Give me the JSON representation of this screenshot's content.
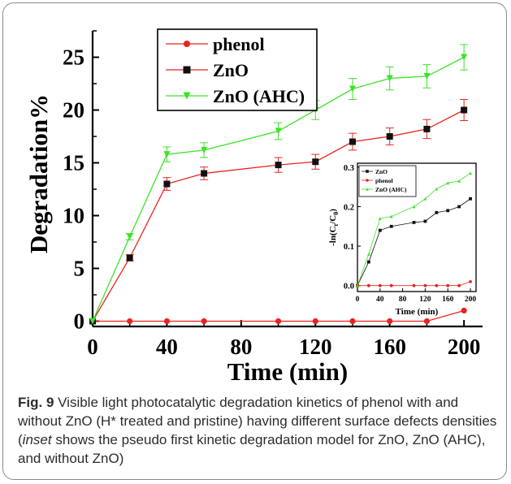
{
  "chart_data": [
    {
      "type": "line",
      "x": [
        0,
        20,
        40,
        60,
        100,
        120,
        140,
        160,
        180,
        200
      ],
      "series": [
        {
          "name": "phenol",
          "color": "#e8231f",
          "marker": "circle",
          "values": [
            0,
            0,
            0,
            0,
            0,
            0,
            0,
            0,
            0,
            1
          ]
        },
        {
          "name": "ZnO",
          "color": "#e8231f",
          "marker": "square",
          "values": [
            0,
            6,
            13,
            14,
            14.8,
            15.1,
            17,
            17.5,
            18.2,
            20
          ],
          "errors": [
            0,
            0.3,
            0.6,
            0.6,
            0.7,
            0.7,
            0.8,
            0.8,
            0.9,
            1.0
          ]
        },
        {
          "name": "ZnO (AHC)",
          "color": "#3de22a",
          "marker": "triangle-down",
          "values": [
            0,
            8,
            15.8,
            16.2,
            18,
            20,
            22,
            23,
            23.2,
            25
          ],
          "errors": [
            0,
            0.3,
            0.7,
            0.7,
            0.8,
            0.9,
            1.0,
            1.1,
            1.1,
            1.2
          ]
        }
      ],
      "xlabel": "Time (min)",
      "ylabel": "Degradation%",
      "xlim": [
        0,
        210
      ],
      "ylim": [
        -0.5,
        27.5
      ],
      "xticks": [
        0,
        40,
        80,
        120,
        160,
        200
      ],
      "yticks": [
        0,
        5,
        10,
        15,
        20,
        25
      ],
      "legend_position": "top-left"
    },
    {
      "type": "line",
      "x": [
        0,
        20,
        40,
        60,
        100,
        120,
        140,
        160,
        180,
        200
      ],
      "series": [
        {
          "name": "ZnO",
          "color": "#111111",
          "marker": "square",
          "values": [
            0,
            0.06,
            0.14,
            0.15,
            0.16,
            0.163,
            0.185,
            0.19,
            0.2,
            0.22
          ]
        },
        {
          "name": "phenol",
          "color": "#e8231f",
          "marker": "circle",
          "values": [
            0,
            0,
            0,
            0,
            0,
            0,
            0,
            0,
            0,
            0.01
          ]
        },
        {
          "name": "ZnO (AHC)",
          "color": "#3de22a",
          "marker": "triangle-up",
          "values": [
            0,
            0.08,
            0.17,
            0.175,
            0.2,
            0.22,
            0.245,
            0.26,
            0.265,
            0.285
          ]
        }
      ],
      "xlabel": "Time (min)",
      "ylabel": "-ln(C/C0)",
      "ylabel_main": "-ln(C",
      "ylabel_sub": "t",
      "ylabel_mid": "/C",
      "ylabel_sub2": "0",
      "ylabel_end": ")",
      "xlim": [
        0,
        210
      ],
      "ylim": [
        -0.015,
        0.31
      ],
      "xticks": [
        0,
        40,
        80,
        120,
        160,
        200
      ],
      "yticks": [
        0.0,
        0.1,
        0.2,
        0.3
      ],
      "ytick_labels": [
        "0.0",
        "0.1",
        "0.2",
        "0.3"
      ],
      "legend_position": "top-left",
      "placement": "inset"
    }
  ],
  "caption": {
    "fig_label": "Fig. 9",
    "text_before": " Visible light photocatalytic degradation kinetics of phenol with and without ZnO (H* treated and pristine) having different surface defects densities (",
    "inset_word": "inset",
    "text_after": " shows the pseudo first kinetic degradation model for ZnO, ZnO (AHC), and without ZnO)"
  }
}
